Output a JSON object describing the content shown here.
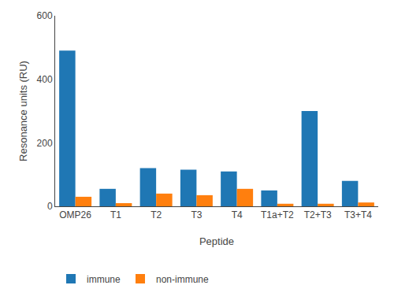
{
  "chart_data": {
    "type": "bar",
    "x_label": "Peptide",
    "y_label": "Resonance units (RU)",
    "categories": [
      "OMP26",
      "T1",
      "T2",
      "T3",
      "T4",
      "T1a+T2",
      "T2+T3",
      "T3+T4"
    ],
    "series": [
      {
        "name": "immune",
        "values": [
          490,
          55,
          120,
          115,
          110,
          50,
          300,
          80
        ]
      },
      {
        "name": "non-immune",
        "values": [
          30,
          10,
          40,
          35,
          55,
          8,
          8,
          12
        ]
      }
    ],
    "ylim": [
      0,
      600
    ],
    "yticks": [
      0,
      200,
      400,
      600
    ],
    "grid": false,
    "legend": "bottom"
  }
}
